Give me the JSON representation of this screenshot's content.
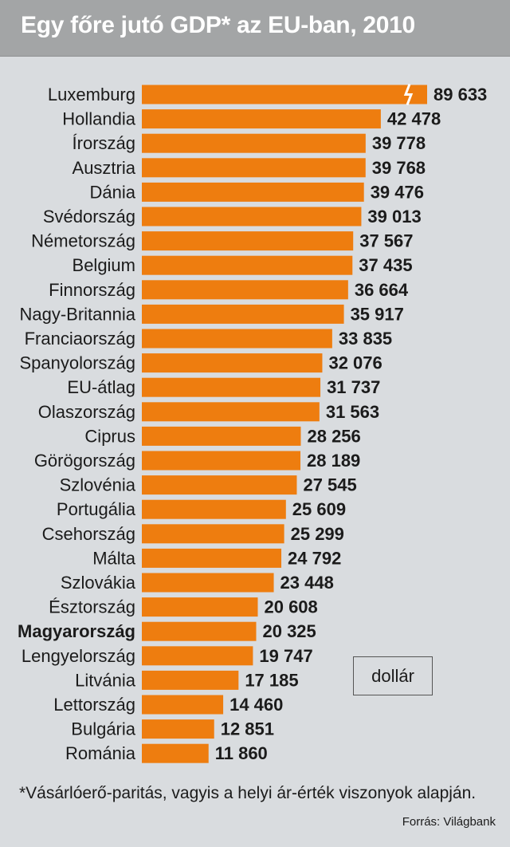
{
  "title": "Egy főre jutó GDP* az EU-ban, 2010",
  "unit_label": "dollár",
  "footnote": "*Vásárlóerő-paritás, vagyis a helyi ár-érték viszonyok alapján.",
  "source": "Forrás: Világbank",
  "colors": {
    "bar": "#ee7d0f",
    "background": "#d9dcdf",
    "title_bar": "#a3a5a6"
  },
  "chart_data": {
    "type": "bar",
    "orientation": "horizontal",
    "title": "Egy főre jutó GDP* az EU-ban, 2010",
    "unit": "dollár",
    "axis_break_on": "Luxemburg",
    "highlight": "Magyarország",
    "categories": [
      "Luxemburg",
      "Hollandia",
      "Írország",
      "Ausztria",
      "Dánia",
      "Svédország",
      "Németország",
      "Belgium",
      "Finnország",
      "Nagy-Britannia",
      "Franciaország",
      "Spanyolország",
      "EU-átlag",
      "Olaszország",
      "Ciprus",
      "Görögország",
      "Szlovénia",
      "Portugália",
      "Csehország",
      "Málta",
      "Szlovákia",
      "Észtország",
      "Magyarország",
      "Lengyelország",
      "Litvánia",
      "Lettország",
      "Bulgária",
      "Románia"
    ],
    "values": [
      89633,
      42478,
      39778,
      39768,
      39476,
      39013,
      37567,
      37435,
      36664,
      35917,
      33835,
      32076,
      31737,
      31563,
      28256,
      28189,
      27545,
      25609,
      25299,
      24792,
      23448,
      20608,
      20325,
      19747,
      17185,
      14460,
      12851,
      11860
    ],
    "value_labels": [
      "89 633",
      "42 478",
      "39 778",
      "39 768",
      "39 476",
      "39 013",
      "37 567",
      "37 435",
      "36 664",
      "35 917",
      "33 835",
      "32 076",
      "31 737",
      "31 563",
      "28 256",
      "28 189",
      "27 545",
      "25 609",
      "25 299",
      "24 792",
      "23 448",
      "20 608",
      "20 325",
      "19 747",
      "17 185",
      "14 460",
      "12 851",
      "11 860"
    ]
  }
}
